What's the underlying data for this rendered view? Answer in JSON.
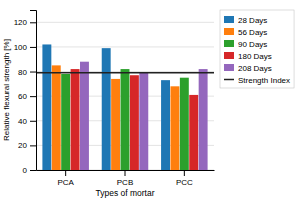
{
  "chart_data": {
    "type": "bar",
    "categories": [
      "PCA",
      "PCB",
      "PCC"
    ],
    "series": [
      {
        "name": "28 Days",
        "values": [
          102,
          99,
          73
        ]
      },
      {
        "name": "56 Days",
        "values": [
          85,
          74,
          68
        ]
      },
      {
        "name": "90 Days",
        "values": [
          78,
          82,
          75
        ]
      },
      {
        "name": "180 Days",
        "values": [
          82,
          77,
          61
        ]
      },
      {
        "name": "208 Days",
        "values": [
          88,
          79,
          82
        ]
      }
    ],
    "strength_index": {
      "name": "Strength Index",
      "value": 79
    },
    "xlabel": "Types of mortar",
    "ylabel": "Relative flexural strength [%]",
    "ylim": [
      0,
      130
    ],
    "yticks": [
      0,
      20,
      40,
      60,
      80,
      100,
      120
    ],
    "grid": true,
    "legend": "right"
  }
}
